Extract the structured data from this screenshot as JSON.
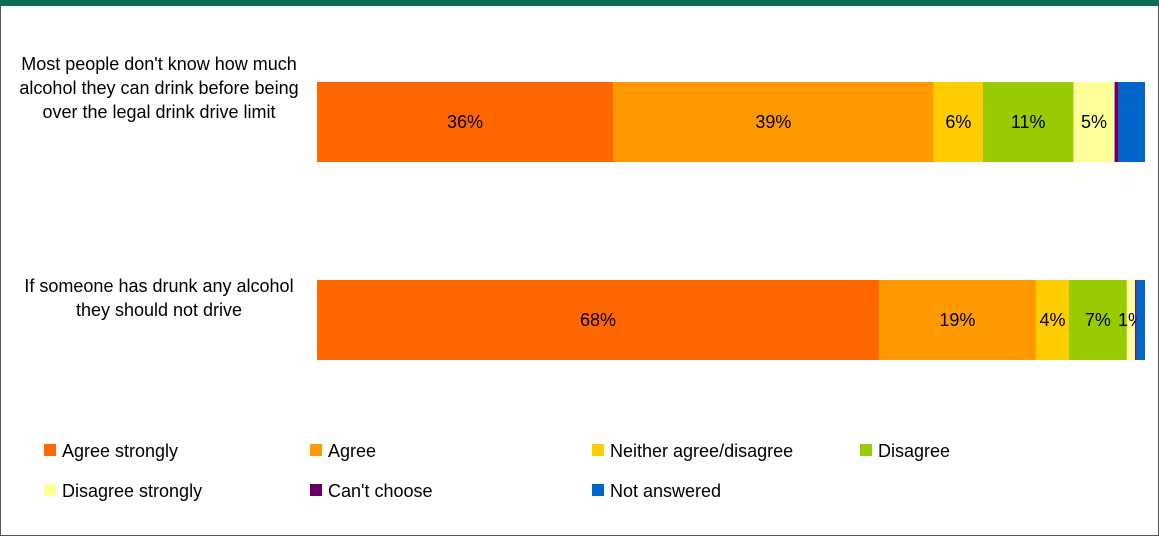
{
  "chart_data": {
    "type": "bar",
    "orientation": "horizontal",
    "stacked": true,
    "categories": [
      "Most people don't know how much alcohol they can drink before being over the legal drink drive limit",
      "If someone has drunk any alcohol they should not drive"
    ],
    "series": [
      {
        "name": "Agree strongly",
        "color": "#ff6600",
        "values": [
          36,
          68
        ],
        "labels": [
          "36%",
          "68%"
        ]
      },
      {
        "name": "Agree",
        "color": "#ff9900",
        "values": [
          39,
          19
        ],
        "labels": [
          "39%",
          "19%"
        ]
      },
      {
        "name": "Neither agree/disagree",
        "color": "#ffcc00",
        "values": [
          6,
          4
        ],
        "labels": [
          "6%",
          "4%"
        ]
      },
      {
        "name": "Disagree",
        "color": "#99cc00",
        "values": [
          11,
          7
        ],
        "labels": [
          "11%",
          "7%"
        ]
      },
      {
        "name": "Disagree strongly",
        "color": "#ffff99",
        "values": [
          5,
          1
        ],
        "labels": [
          "5%",
          "1%"
        ]
      },
      {
        "name": "Can't choose",
        "color": "#660066",
        "values": [
          0.5,
          0.2
        ],
        "labels": [
          "",
          ""
        ]
      },
      {
        "name": "Not answered",
        "color": "#0066cc",
        "values": [
          3.2,
          1.0
        ],
        "labels": [
          "",
          ""
        ]
      }
    ],
    "xlim": [
      0,
      100
    ],
    "grid": false,
    "legend_position": "bottom"
  },
  "colors": {
    "header_bar": "#0e6b55",
    "frame_border": "#555555"
  }
}
